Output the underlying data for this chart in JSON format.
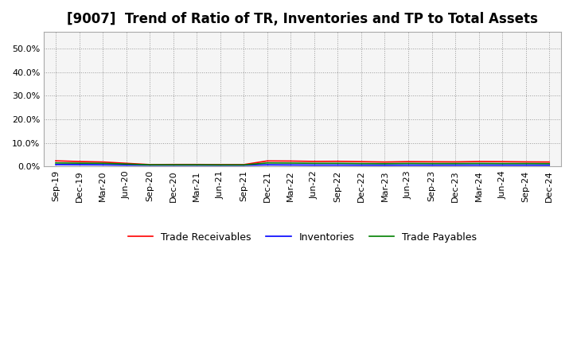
{
  "title": "[9007]  Trend of Ratio of TR, Inventories and TP to Total Assets",
  "x_labels": [
    "Sep-19",
    "Dec-19",
    "Mar-20",
    "Jun-20",
    "Sep-20",
    "Dec-20",
    "Mar-21",
    "Jun-21",
    "Sep-21",
    "Dec-21",
    "Mar-22",
    "Jun-22",
    "Sep-22",
    "Dec-22",
    "Mar-23",
    "Jun-23",
    "Sep-23",
    "Dec-23",
    "Mar-24",
    "Jun-24",
    "Sep-24",
    "Dec-24"
  ],
  "trade_receivables": [
    0.0245,
    0.0215,
    0.0195,
    0.014,
    0.0085,
    0.009,
    0.009,
    0.0085,
    0.0085,
    0.024,
    0.0235,
    0.022,
    0.0225,
    0.021,
    0.0195,
    0.021,
    0.0205,
    0.02,
    0.0215,
    0.021,
    0.02,
    0.0195
  ],
  "inventories": [
    0.0085,
    0.008,
    0.0075,
    0.0065,
    0.006,
    0.006,
    0.006,
    0.0058,
    0.0058,
    0.0075,
    0.007,
    0.0065,
    0.0065,
    0.0062,
    0.006,
    0.0063,
    0.0062,
    0.0063,
    0.0064,
    0.0063,
    0.0062,
    0.006
  ],
  "trade_payables": [
    0.0155,
    0.0145,
    0.014,
    0.011,
    0.0075,
    0.0075,
    0.0075,
    0.0072,
    0.0072,
    0.0155,
    0.015,
    0.014,
    0.014,
    0.013,
    0.0125,
    0.0135,
    0.013,
    0.013,
    0.0135,
    0.013,
    0.013,
    0.0125
  ],
  "tr_color": "#ff0000",
  "inv_color": "#0000ff",
  "tp_color": "#008000",
  "ylim": [
    0.0,
    0.57
  ],
  "yticks": [
    0.0,
    0.1,
    0.2,
    0.3,
    0.4,
    0.5
  ],
  "ytick_labels": [
    "0.0%",
    "10.0%",
    "20.0%",
    "30.0%",
    "40.0%",
    "50.0%"
  ],
  "background_color": "#ffffff",
  "plot_bg_color": "#f5f5f5",
  "grid_color": "#999999",
  "title_fontsize": 12,
  "tick_fontsize": 8,
  "legend_labels": [
    "Trade Receivables",
    "Inventories",
    "Trade Payables"
  ]
}
